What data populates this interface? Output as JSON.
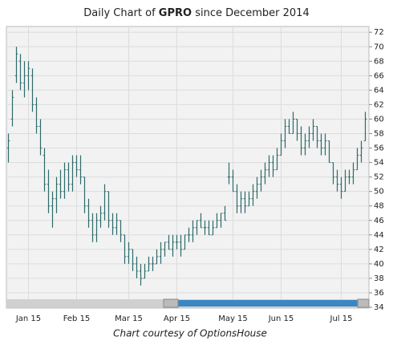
{
  "chart_data": {
    "type": "ohlc",
    "title": {
      "before": "Daily Chart of ",
      "ticker": "GPRO",
      "after": " since December 2014"
    },
    "caption": "Chart courtesy of OptionsHouse",
    "color": "#2f6b6b",
    "grid": true,
    "ylim": [
      34,
      72.8
    ],
    "yticks": [
      34,
      36,
      38,
      40,
      42,
      44,
      46,
      48,
      50,
      52,
      54,
      56,
      58,
      60,
      62,
      64,
      66,
      68,
      70,
      72
    ],
    "categories": [
      null,
      null,
      null,
      null,
      null,
      "Jan 15",
      null,
      null,
      null,
      null,
      null,
      null,
      null,
      null,
      null,
      null,
      null,
      "Feb 15",
      null,
      null,
      null,
      null,
      null,
      null,
      null,
      null,
      null,
      null,
      null,
      null,
      "Mar 15",
      null,
      null,
      null,
      null,
      null,
      null,
      null,
      null,
      null,
      null,
      null,
      "Apr 15",
      null,
      null,
      null,
      null,
      null,
      null,
      null,
      null,
      null,
      null,
      null,
      null,
      null,
      "May 15",
      null,
      null,
      null,
      null,
      null,
      null,
      null,
      null,
      null,
      null,
      null,
      "Jun 15",
      null,
      null,
      null,
      null,
      null,
      null,
      null,
      null,
      null,
      null,
      null,
      null,
      null,
      null,
      "Jul 15",
      null,
      null,
      null,
      null,
      null,
      null
    ],
    "values": [
      [
        56,
        58,
        54,
        57
      ],
      [
        60,
        64,
        59,
        63
      ],
      [
        66,
        70,
        65,
        69
      ],
      [
        68,
        69,
        64,
        65
      ],
      [
        65,
        68,
        63,
        66
      ],
      [
        66,
        68,
        64,
        67
      ],
      [
        66,
        67,
        61,
        62
      ],
      [
        62,
        63,
        58,
        59
      ],
      [
        59,
        60,
        55,
        56
      ],
      [
        55,
        56,
        50,
        51
      ],
      [
        51,
        53,
        47,
        48
      ],
      [
        48,
        50,
        45,
        49
      ],
      [
        49,
        52,
        47,
        51
      ],
      [
        51,
        53,
        49,
        50
      ],
      [
        50,
        54,
        49,
        53
      ],
      [
        53,
        54,
        50,
        51
      ],
      [
        51,
        55,
        50,
        54
      ],
      [
        54,
        55,
        52,
        53
      ],
      [
        53,
        55,
        51,
        52
      ],
      [
        52,
        52,
        47,
        48
      ],
      [
        48,
        49,
        45,
        46
      ],
      [
        46,
        47,
        43,
        44
      ],
      [
        44,
        47,
        43,
        46
      ],
      [
        46,
        48,
        45,
        47
      ],
      [
        47,
        51,
        46,
        50
      ],
      [
        50,
        50,
        45,
        46
      ],
      [
        46,
        47,
        44,
        45
      ],
      [
        45,
        47,
        44,
        46
      ],
      [
        46,
        46,
        43,
        44
      ],
      [
        44,
        44,
        40,
        41
      ],
      [
        41,
        43,
        40,
        42
      ],
      [
        42,
        42,
        39,
        40
      ],
      [
        40,
        41,
        38,
        39
      ],
      [
        39,
        40,
        37,
        38
      ],
      [
        38,
        40,
        38,
        39
      ],
      [
        39,
        41,
        39,
        40
      ],
      [
        40,
        41,
        39,
        40
      ],
      [
        40,
        42,
        40,
        41
      ],
      [
        41,
        43,
        40,
        42
      ],
      [
        42,
        43,
        41,
        43
      ],
      [
        43,
        44,
        42,
        42
      ],
      [
        42,
        44,
        41,
        43
      ],
      [
        43,
        44,
        42,
        43
      ],
      [
        43,
        44,
        41,
        42
      ],
      [
        42,
        44,
        42,
        44
      ],
      [
        44,
        45,
        43,
        44
      ],
      [
        44,
        46,
        43,
        45
      ],
      [
        45,
        46,
        44,
        46
      ],
      [
        46,
        47,
        45,
        45
      ],
      [
        45,
        46,
        44,
        45
      ],
      [
        45,
        46,
        44,
        44
      ],
      [
        44,
        46,
        44,
        45
      ],
      [
        45,
        47,
        45,
        46
      ],
      [
        46,
        47,
        45,
        47
      ],
      [
        47,
        48,
        46,
        46
      ],
      [
        52,
        54,
        51,
        52
      ],
      [
        52,
        53,
        50,
        50
      ],
      [
        50,
        51,
        47,
        48
      ],
      [
        48,
        50,
        47,
        49
      ],
      [
        49,
        50,
        47,
        48
      ],
      [
        48,
        50,
        48,
        49
      ],
      [
        49,
        51,
        48,
        50
      ],
      [
        50,
        52,
        49,
        51
      ],
      [
        51,
        53,
        50,
        52
      ],
      [
        52,
        54,
        51,
        53
      ],
      [
        53,
        55,
        52,
        54
      ],
      [
        54,
        55,
        52,
        53
      ],
      [
        53,
        56,
        53,
        55
      ],
      [
        55,
        58,
        55,
        57
      ],
      [
        57,
        60,
        56,
        59
      ],
      [
        59,
        60,
        58,
        58
      ],
      [
        58,
        61,
        58,
        60
      ],
      [
        60,
        60,
        57,
        58
      ],
      [
        58,
        59,
        55,
        56
      ],
      [
        56,
        58,
        55,
        57
      ],
      [
        57,
        59,
        56,
        58
      ],
      [
        58,
        60,
        57,
        59
      ],
      [
        59,
        59,
        56,
        57
      ],
      [
        57,
        58,
        55,
        56
      ],
      [
        56,
        58,
        55,
        57
      ],
      [
        57,
        57,
        54,
        54
      ],
      [
        54,
        54,
        51,
        52
      ],
      [
        52,
        53,
        50,
        51
      ],
      [
        51,
        52,
        49,
        50
      ],
      [
        50,
        53,
        50,
        52
      ],
      [
        52,
        53,
        51,
        52
      ],
      [
        52,
        54,
        51,
        53
      ],
      [
        53,
        56,
        53,
        55
      ],
      [
        55,
        57,
        54,
        56
      ],
      [
        57,
        61,
        57,
        60
      ]
    ]
  }
}
